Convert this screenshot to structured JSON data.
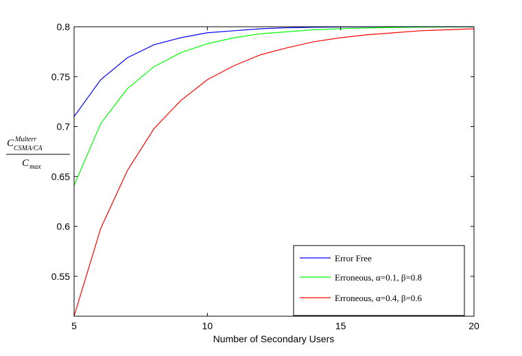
{
  "chart_data": {
    "type": "line",
    "title": "",
    "xlabel": "Number of Secondary Users",
    "ylabel": {
      "main": "C",
      "superscript": "Multerr",
      "subscript": "CSMA/CA",
      "denominator_main": "C",
      "denominator_subscript": "max"
    },
    "xlim": [
      5,
      20
    ],
    "ylim": [
      0.51,
      0.8
    ],
    "xticks": [
      5,
      10,
      15,
      20
    ],
    "xtick_labels": [
      "5",
      "10",
      "15",
      "20"
    ],
    "yticks": [
      0.55,
      0.6,
      0.65,
      0.7,
      0.75,
      0.8
    ],
    "ytick_labels": [
      "0.55",
      "0.6",
      "0.65",
      "0.7",
      "0.75",
      "0.8"
    ],
    "grid": false,
    "legend_position": "bottom-right",
    "x": [
      5,
      6,
      7,
      8,
      9,
      10,
      11,
      12,
      13,
      14,
      15,
      16,
      17,
      18,
      19,
      20
    ],
    "series": [
      {
        "name": "Error Free",
        "color": "#0000ff",
        "values": [
          0.71,
          0.747,
          0.769,
          0.782,
          0.789,
          0.794,
          0.796,
          0.798,
          0.799,
          0.7995,
          0.7998,
          0.7999,
          0.8,
          0.8,
          0.8,
          0.8
        ]
      },
      {
        "name": "Erroneous, α=0.1, β=0.8",
        "color": "#00ff00",
        "values": [
          0.641,
          0.703,
          0.738,
          0.76,
          0.774,
          0.783,
          0.789,
          0.793,
          0.795,
          0.797,
          0.798,
          0.7988,
          0.7993,
          0.7996,
          0.7998,
          0.7999
        ]
      },
      {
        "name": "Erroneous, α=0.4, β=0.6",
        "color": "#ff0000",
        "values": [
          0.51,
          0.598,
          0.656,
          0.698,
          0.726,
          0.747,
          0.761,
          0.772,
          0.779,
          0.785,
          0.789,
          0.792,
          0.794,
          0.796,
          0.797,
          0.798
        ]
      }
    ]
  }
}
